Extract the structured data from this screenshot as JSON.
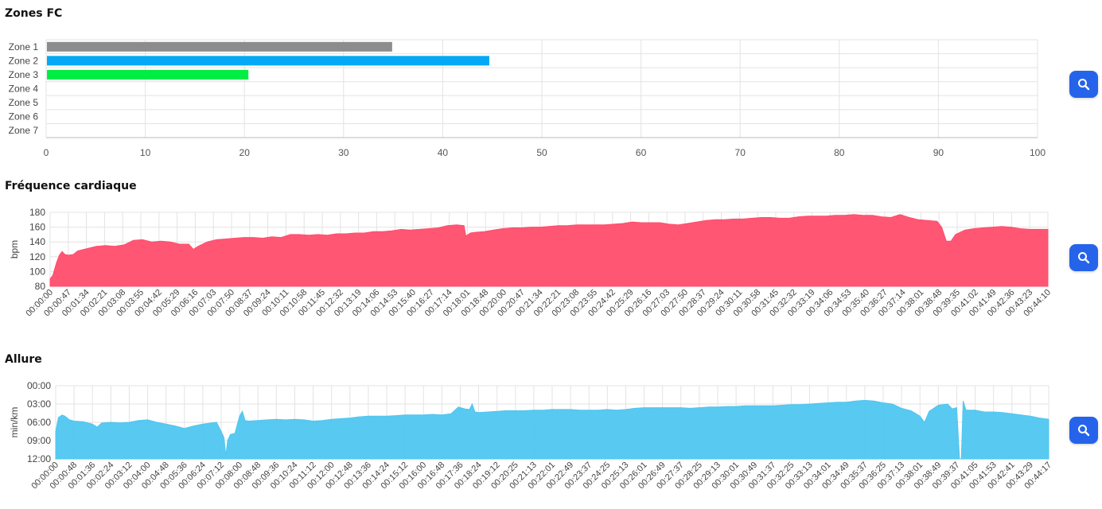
{
  "sections": {
    "zones": {
      "title": "Zones FC"
    },
    "hr": {
      "title": "Fréquence cardiaque"
    },
    "pace": {
      "title": "Allure"
    }
  },
  "buttons": {
    "zoom_icon": "search-icon"
  },
  "chart_data": [
    {
      "type": "bar",
      "orientation": "horizontal",
      "title": "Zones FC",
      "categories": [
        "Zone 1",
        "Zone 2",
        "Zone 3",
        "Zone 4",
        "Zone 5",
        "Zone 6",
        "Zone 7"
      ],
      "values": [
        34.9,
        44.7,
        20.4,
        0,
        0,
        0,
        0
      ],
      "colors": [
        "#8c8c8c",
        "#03a9f4",
        "#00ee44",
        "#ff9800",
        "#f44336",
        "#9c27b0",
        "#000000"
      ],
      "xlim": [
        0,
        100
      ],
      "xticks": [
        0,
        10,
        20,
        30,
        40,
        50,
        60,
        70,
        80,
        90,
        100
      ],
      "grid": true
    },
    {
      "type": "area",
      "title": "Fréquence cardiaque",
      "ylabel": "bpm",
      "ylim": [
        80,
        180
      ],
      "yticks": [
        80,
        100,
        120,
        140,
        160,
        180
      ],
      "color": "#ff4d6d",
      "xtick_labels": [
        "00:00:00",
        "00:00:47",
        "00:01:34",
        "00:02:21",
        "00:03:08",
        "00:03:55",
        "00:04:42",
        "00:05:29",
        "00:06:16",
        "00:07:03",
        "00:07:50",
        "00:08:37",
        "00:09:24",
        "00:10:11",
        "00:10:58",
        "00:11:45",
        "00:12:32",
        "00:13:19",
        "00:14:06",
        "00:14:53",
        "00:15:40",
        "00:16:27",
        "00:17:14",
        "00:18:01",
        "00:18:48",
        "00:20:00",
        "00:20:47",
        "00:21:34",
        "00:22:21",
        "00:23:08",
        "00:23:55",
        "00:24:42",
        "00:25:29",
        "00:26:16",
        "00:27:03",
        "00:27:50",
        "00:28:37",
        "00:29:24",
        "00:30:11",
        "00:30:58",
        "00:31:45",
        "00:32:32",
        "00:33:19",
        "00:34:06",
        "00:34:53",
        "00:35:40",
        "00:36:27",
        "00:37:14",
        "00:38:01",
        "00:38:48",
        "00:39:35",
        "00:41:02",
        "00:41:49",
        "00:42:36",
        "00:43:23",
        "00:44:10"
      ],
      "points": [
        [
          0,
          90
        ],
        [
          0.3,
          95
        ],
        [
          0.7,
          112
        ],
        [
          1.0,
          122
        ],
        [
          1.3,
          127
        ],
        [
          1.6,
          123
        ],
        [
          2.0,
          122
        ],
        [
          2.5,
          123
        ],
        [
          3.0,
          128
        ],
        [
          4.0,
          131
        ],
        [
          5.0,
          134
        ],
        [
          6.0,
          135
        ],
        [
          7.0,
          134
        ],
        [
          8.0,
          136
        ],
        [
          9.0,
          142
        ],
        [
          10.0,
          143
        ],
        [
          11.0,
          140
        ],
        [
          12.0,
          141
        ],
        [
          13.0,
          140
        ],
        [
          14.0,
          137
        ],
        [
          15.0,
          137
        ],
        [
          15.5,
          130
        ],
        [
          16.0,
          134
        ],
        [
          17.0,
          140
        ],
        [
          18.0,
          143
        ],
        [
          19.0,
          144
        ],
        [
          20.0,
          145
        ],
        [
          21.0,
          146
        ],
        [
          22.0,
          146
        ],
        [
          23.0,
          145
        ],
        [
          24.0,
          147
        ],
        [
          25.0,
          146
        ],
        [
          26.0,
          150
        ],
        [
          27.0,
          150
        ],
        [
          28.0,
          149
        ],
        [
          29.0,
          150
        ],
        [
          30.0,
          149
        ],
        [
          31.0,
          151
        ],
        [
          32.0,
          151
        ],
        [
          33.0,
          152
        ],
        [
          34.0,
          152
        ],
        [
          35.0,
          154
        ],
        [
          36.0,
          154
        ],
        [
          37.0,
          155
        ],
        [
          38.0,
          157
        ],
        [
          39.0,
          156
        ],
        [
          40.0,
          157
        ],
        [
          41.0,
          158
        ],
        [
          42.0,
          159
        ],
        [
          43.0,
          162
        ],
        [
          44.0,
          163
        ],
        [
          44.8,
          162
        ],
        [
          45.0,
          148
        ],
        [
          45.5,
          152
        ],
        [
          46.0,
          153
        ],
        [
          47.0,
          154
        ],
        [
          48.0,
          156
        ],
        [
          49.0,
          158
        ],
        [
          50.0,
          159
        ],
        [
          51.0,
          159
        ],
        [
          52.0,
          160
        ],
        [
          53.0,
          160
        ],
        [
          54.0,
          161
        ],
        [
          55.0,
          162
        ],
        [
          56.0,
          162
        ],
        [
          57.0,
          163
        ],
        [
          58.0,
          163
        ],
        [
          59.0,
          163
        ],
        [
          60.0,
          163
        ],
        [
          61.0,
          164
        ],
        [
          62.0,
          165
        ],
        [
          63.0,
          167
        ],
        [
          64.0,
          166
        ],
        [
          65.0,
          166
        ],
        [
          66.0,
          166
        ],
        [
          67.0,
          164
        ],
        [
          68.0,
          163
        ],
        [
          69.0,
          165
        ],
        [
          70.0,
          167
        ],
        [
          71.0,
          169
        ],
        [
          72.0,
          170
        ],
        [
          73.0,
          170
        ],
        [
          74.0,
          171
        ],
        [
          75.0,
          171
        ],
        [
          76.0,
          172
        ],
        [
          77.0,
          173
        ],
        [
          78.0,
          173
        ],
        [
          79.0,
          172
        ],
        [
          80.0,
          172
        ],
        [
          81.0,
          174
        ],
        [
          82.0,
          175
        ],
        [
          83.0,
          175
        ],
        [
          84.0,
          175
        ],
        [
          85.0,
          176
        ],
        [
          86.0,
          176
        ],
        [
          87.0,
          177
        ],
        [
          88.0,
          176
        ],
        [
          89.0,
          176
        ],
        [
          90.0,
          174
        ],
        [
          91.0,
          173
        ],
        [
          92.0,
          177
        ],
        [
          93.0,
          173
        ],
        [
          94.0,
          170
        ],
        [
          95.0,
          169
        ],
        [
          96.0,
          168
        ],
        [
          96.5,
          160
        ],
        [
          97.0,
          141
        ],
        [
          97.5,
          141
        ],
        [
          98.0,
          150
        ],
        [
          99.0,
          156
        ],
        [
          100.0,
          158
        ],
        [
          101.0,
          159
        ],
        [
          102.0,
          160
        ],
        [
          103.0,
          161
        ],
        [
          104.0,
          160
        ],
        [
          105.0,
          158
        ],
        [
          106.0,
          157
        ],
        [
          107.0,
          157
        ],
        [
          108.0,
          157
        ]
      ]
    },
    {
      "type": "area",
      "title": "Allure",
      "ylabel": "min/km",
      "ylim": [
        0,
        12
      ],
      "yticks": [
        0,
        3,
        6,
        9,
        12
      ],
      "ytick_labels": [
        "00:00",
        "03:00",
        "06:00",
        "09:00",
        "12:00"
      ],
      "inverted_y": true,
      "color": "#4fc6f0",
      "xtick_labels": [
        "00:00:00",
        "00:00:48",
        "00:01:36",
        "00:02:24",
        "00:03:12",
        "00:04:00",
        "00:04:48",
        "00:05:36",
        "00:06:24",
        "00:07:12",
        "00:08:00",
        "00:08:48",
        "00:09:36",
        "00:10:24",
        "00:11:12",
        "00:12:00",
        "00:12:48",
        "00:13:36",
        "00:14:24",
        "00:15:12",
        "00:16:00",
        "00:16:48",
        "00:17:36",
        "00:18:24",
        "00:19:12",
        "00:20:25",
        "00:21:13",
        "00:22:01",
        "00:22:49",
        "00:23:37",
        "00:24:25",
        "00:25:13",
        "00:26:01",
        "00:26:49",
        "00:27:37",
        "00:28:25",
        "00:29:13",
        "00:30:01",
        "00:30:49",
        "00:31:37",
        "00:32:25",
        "00:33:13",
        "00:34:01",
        "00:34:49",
        "00:35:37",
        "00:36:25",
        "00:37:13",
        "00:38:01",
        "00:38:49",
        "00:39:37",
        "00:41:05",
        "00:41:53",
        "00:42:41",
        "00:43:29",
        "00:44:17"
      ],
      "points": [
        [
          0,
          7.5
        ],
        [
          0.3,
          5.2
        ],
        [
          0.7,
          4.8
        ],
        [
          1.0,
          5.0
        ],
        [
          1.5,
          5.6
        ],
        [
          2.0,
          5.8
        ],
        [
          3.0,
          5.9
        ],
        [
          4.0,
          6.3
        ],
        [
          4.5,
          6.8
        ],
        [
          5.0,
          6.1
        ],
        [
          6.0,
          6.0
        ],
        [
          7.0,
          6.1
        ],
        [
          8.0,
          6.0
        ],
        [
          9.0,
          5.7
        ],
        [
          10.0,
          5.6
        ],
        [
          11.0,
          6.0
        ],
        [
          12.0,
          6.3
        ],
        [
          13.0,
          6.6
        ],
        [
          14.0,
          7.0
        ],
        [
          15.0,
          6.6
        ],
        [
          16.0,
          6.3
        ],
        [
          17.0,
          6.1
        ],
        [
          17.5,
          6.0
        ],
        [
          18.0,
          7.5
        ],
        [
          18.3,
          8.5
        ],
        [
          18.5,
          11.5
        ],
        [
          18.7,
          9.0
        ],
        [
          19.0,
          8.0
        ],
        [
          19.5,
          7.8
        ],
        [
          20.0,
          5.0
        ],
        [
          20.3,
          4.2
        ],
        [
          20.6,
          5.7
        ],
        [
          21.0,
          5.8
        ],
        [
          22.0,
          5.7
        ],
        [
          23.0,
          5.6
        ],
        [
          24.0,
          5.5
        ],
        [
          25.0,
          5.6
        ],
        [
          26.0,
          5.5
        ],
        [
          27.0,
          5.6
        ],
        [
          28.0,
          5.8
        ],
        [
          29.0,
          5.7
        ],
        [
          30.0,
          5.5
        ],
        [
          31.0,
          5.4
        ],
        [
          32.0,
          5.3
        ],
        [
          33.0,
          5.1
        ],
        [
          34.0,
          5.0
        ],
        [
          35.0,
          5.0
        ],
        [
          36.0,
          5.0
        ],
        [
          37.0,
          4.9
        ],
        [
          38.0,
          4.8
        ],
        [
          39.0,
          4.8
        ],
        [
          40.0,
          4.8
        ],
        [
          41.0,
          4.7
        ],
        [
          42.0,
          4.8
        ],
        [
          43.0,
          4.6
        ],
        [
          43.8,
          3.5
        ],
        [
          44.5,
          3.8
        ],
        [
          45.0,
          3.9
        ],
        [
          45.3,
          3.0
        ],
        [
          45.6,
          4.3
        ],
        [
          46.0,
          4.4
        ],
        [
          47.0,
          4.3
        ],
        [
          48.0,
          4.2
        ],
        [
          49.0,
          4.1
        ],
        [
          50.0,
          4.1
        ],
        [
          51.0,
          4.1
        ],
        [
          52.0,
          4.0
        ],
        [
          53.0,
          4.0
        ],
        [
          54.0,
          3.9
        ],
        [
          55.0,
          3.9
        ],
        [
          56.0,
          3.9
        ],
        [
          57.0,
          4.0
        ],
        [
          58.0,
          4.0
        ],
        [
          59.0,
          4.0
        ],
        [
          60.0,
          3.9
        ],
        [
          61.0,
          4.0
        ],
        [
          62.0,
          3.9
        ],
        [
          63.0,
          3.7
        ],
        [
          64.0,
          3.6
        ],
        [
          65.0,
          3.6
        ],
        [
          66.0,
          3.6
        ],
        [
          67.0,
          3.6
        ],
        [
          68.0,
          3.6
        ],
        [
          69.0,
          3.7
        ],
        [
          70.0,
          3.6
        ],
        [
          71.0,
          3.5
        ],
        [
          72.0,
          3.5
        ],
        [
          73.0,
          3.4
        ],
        [
          74.0,
          3.4
        ],
        [
          75.0,
          3.3
        ],
        [
          76.0,
          3.3
        ],
        [
          77.0,
          3.3
        ],
        [
          78.0,
          3.3
        ],
        [
          79.0,
          3.2
        ],
        [
          80.0,
          3.1
        ],
        [
          81.0,
          3.1
        ],
        [
          82.0,
          3.0
        ],
        [
          83.0,
          2.9
        ],
        [
          84.0,
          2.8
        ],
        [
          85.0,
          2.7
        ],
        [
          86.0,
          2.7
        ],
        [
          87.0,
          2.5
        ],
        [
          88.0,
          2.4
        ],
        [
          89.0,
          2.5
        ],
        [
          90.0,
          2.8
        ],
        [
          91.0,
          3.0
        ],
        [
          92.0,
          3.7
        ],
        [
          93.0,
          4.1
        ],
        [
          94.0,
          5.0
        ],
        [
          94.5,
          6.0
        ],
        [
          95.0,
          4.2
        ],
        [
          96.0,
          3.2
        ],
        [
          97.0,
          3.0
        ],
        [
          97.5,
          3.8
        ],
        [
          98.0,
          3.6
        ],
        [
          98.3,
          12
        ],
        [
          98.5,
          12
        ],
        [
          98.7,
          2.5
        ],
        [
          99.0,
          4.0
        ],
        [
          100.0,
          4.0
        ],
        [
          101.0,
          4.3
        ],
        [
          102.0,
          4.3
        ],
        [
          103.0,
          4.4
        ],
        [
          104.0,
          4.6
        ],
        [
          105.0,
          4.8
        ],
        [
          106.0,
          5.0
        ],
        [
          107.0,
          5.3
        ],
        [
          108.0,
          5.5
        ]
      ]
    }
  ]
}
